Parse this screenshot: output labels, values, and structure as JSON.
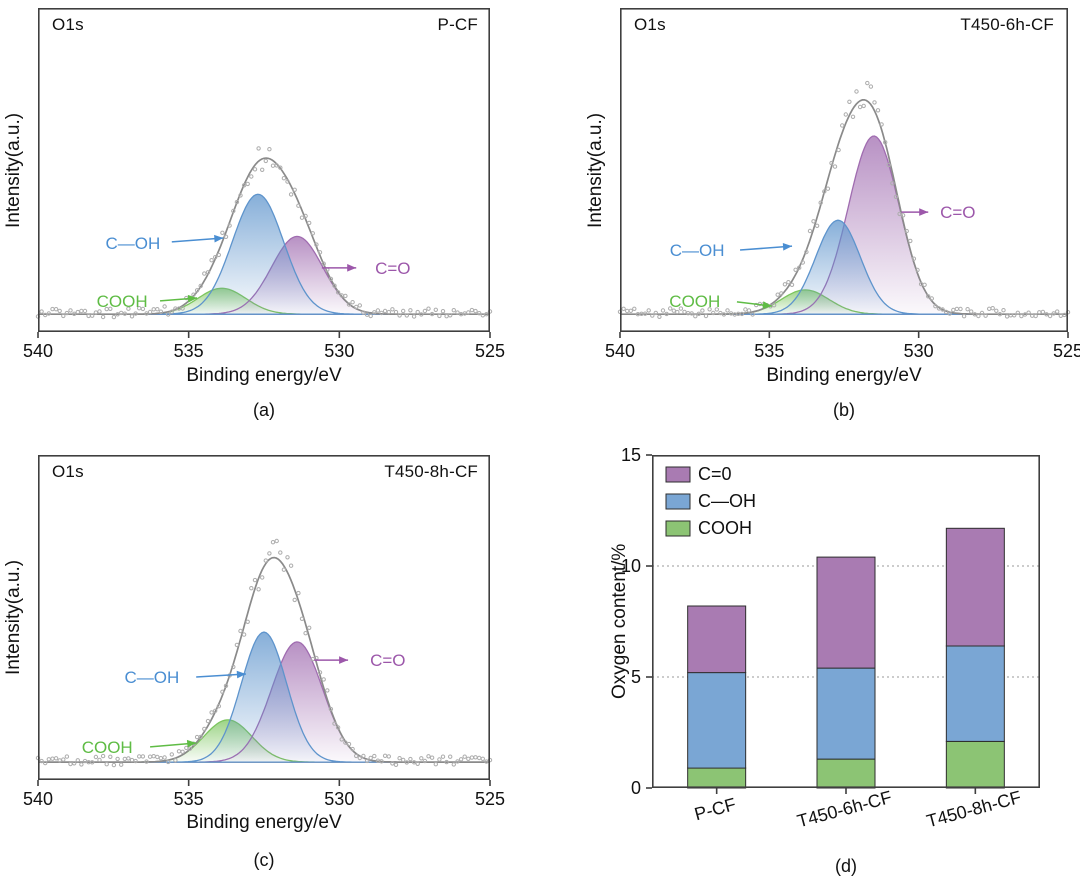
{
  "chart_data": [
    {
      "type": "area",
      "panel": "a",
      "caption": "(a)",
      "title": "O1s",
      "sample": "P-CF",
      "xlabel": "Binding energy/eV",
      "ylabel": "Intensity(a.u.)",
      "x_range": [
        540,
        525
      ],
      "x_ticks": [
        540,
        535,
        530,
        525
      ],
      "x_axis_reversed": true,
      "envelope_color": "#8a8a8a",
      "scatter_color": "#adadad",
      "series": [
        {
          "name": "COOH",
          "color": "#7cc55e",
          "center_eV": 533.9,
          "sigma_eV": 0.8,
          "rel_height": 0.08
        },
        {
          "name": "C=O",
          "color": "#a06cb0",
          "center_eV": 531.4,
          "sigma_eV": 0.85,
          "rel_height": 0.24
        },
        {
          "name": "C—OH",
          "color": "#5e94cc",
          "center_eV": 532.7,
          "sigma_eV": 0.85,
          "rel_height": 0.37
        }
      ],
      "annotations": [
        {
          "text": "C—OH",
          "color": "#4a8ed2",
          "tx": 0.21,
          "ty": 0.725,
          "x1": 0.296,
          "y1": 0.722,
          "x2": 0.41,
          "y2": 0.71
        },
        {
          "text": "COOH",
          "color": "#5fbc45",
          "tx": 0.186,
          "ty": 0.904,
          "x1": 0.27,
          "y1": 0.904,
          "x2": 0.352,
          "y2": 0.895
        },
        {
          "text": "C=O",
          "color": "#9c57aa",
          "tx": 0.785,
          "ty": 0.802,
          "x1": 0.628,
          "y1": 0.802,
          "x2": 0.704,
          "y2": 0.802
        }
      ]
    },
    {
      "type": "area",
      "panel": "b",
      "caption": "(b)",
      "title": "O1s",
      "sample": "T450-6h-CF",
      "xlabel": "Binding energy/eV",
      "ylabel": "Intensity(a.u.)",
      "x_range": [
        540,
        525
      ],
      "x_ticks": [
        540,
        535,
        530,
        525
      ],
      "x_axis_reversed": true,
      "envelope_color": "#8a8a8a",
      "scatter_color": "#adadad",
      "series": [
        {
          "name": "COOH",
          "color": "#7cc55e",
          "center_eV": 533.8,
          "sigma_eV": 0.8,
          "rel_height": 0.075
        },
        {
          "name": "C=O",
          "color": "#a06cb0",
          "center_eV": 531.5,
          "sigma_eV": 0.85,
          "rel_height": 0.55
        },
        {
          "name": "C—OH",
          "color": "#5e94cc",
          "center_eV": 532.7,
          "sigma_eV": 0.75,
          "rel_height": 0.29
        }
      ],
      "annotations": [
        {
          "text": "C—OH",
          "color": "#4a8ed2",
          "tx": 0.172,
          "ty": 0.747,
          "x1": 0.268,
          "y1": 0.747,
          "x2": 0.384,
          "y2": 0.735
        },
        {
          "text": "COOH",
          "color": "#5fbc45",
          "tx": 0.167,
          "ty": 0.904,
          "x1": 0.261,
          "y1": 0.907,
          "x2": 0.339,
          "y2": 0.92
        },
        {
          "text": "C=O",
          "color": "#9c57aa",
          "tx": 0.754,
          "ty": 0.63,
          "x1": 0.628,
          "y1": 0.63,
          "x2": 0.688,
          "y2": 0.63
        }
      ]
    },
    {
      "type": "area",
      "panel": "c",
      "caption": "(c)",
      "title": "O1s",
      "sample": "T450-8h-CF",
      "xlabel": "Binding energy/eV",
      "ylabel": "Intensity(a.u.)",
      "x_range": [
        540,
        525
      ],
      "x_ticks": [
        540,
        535,
        530,
        525
      ],
      "x_axis_reversed": true,
      "envelope_color": "#8a8a8a",
      "scatter_color": "#adadad",
      "series": [
        {
          "name": "COOH",
          "color": "#7cc55e",
          "center_eV": 533.7,
          "sigma_eV": 0.8,
          "rel_height": 0.13
        },
        {
          "name": "C=O",
          "color": "#a06cb0",
          "center_eV": 531.4,
          "sigma_eV": 0.85,
          "rel_height": 0.37
        },
        {
          "name": "C—OH",
          "color": "#5e94cc",
          "center_eV": 532.5,
          "sigma_eV": 0.75,
          "rel_height": 0.4
        }
      ],
      "annotations": [
        {
          "text": "C—OH",
          "color": "#4a8ed2",
          "tx": 0.252,
          "ty": 0.683,
          "x1": 0.35,
          "y1": 0.683,
          "x2": 0.46,
          "y2": 0.674
        },
        {
          "text": "COOH",
          "color": "#5fbc45",
          "tx": 0.153,
          "ty": 0.898,
          "x1": 0.248,
          "y1": 0.898,
          "x2": 0.35,
          "y2": 0.886
        },
        {
          "text": "C=O",
          "color": "#9c57aa",
          "tx": 0.774,
          "ty": 0.631,
          "x1": 0.611,
          "y1": 0.631,
          "x2": 0.686,
          "y2": 0.631
        }
      ]
    },
    {
      "type": "bar",
      "stacked": true,
      "panel": "d",
      "caption": "(d)",
      "ylabel": "Oxygen content/%",
      "categories": [
        "P-CF",
        "T450-6h-CF",
        "T450-8h-CF"
      ],
      "ylim": [
        0,
        15
      ],
      "y_ticks": [
        0,
        5,
        10,
        15
      ],
      "gridlines": [
        5,
        10
      ],
      "bar_outline": "#2d2d2d",
      "series": [
        {
          "name": "COOH",
          "color": "#8cc474",
          "values": [
            0.9,
            1.3,
            2.1
          ]
        },
        {
          "name": "C—OH",
          "color": "#7aa6d4",
          "values": [
            4.3,
            4.1,
            4.3
          ]
        },
        {
          "name": "C=0",
          "color": "#a97bb2",
          "values": [
            3.0,
            5.0,
            5.3
          ]
        }
      ],
      "totals": [
        8.2,
        10.4,
        11.7
      ],
      "legend": [
        {
          "label": "C=0",
          "color": "#a97bb2"
        },
        {
          "label": "C—OH",
          "color": "#7aa6d4"
        },
        {
          "label": "COOH",
          "color": "#8cc474"
        }
      ]
    }
  ]
}
